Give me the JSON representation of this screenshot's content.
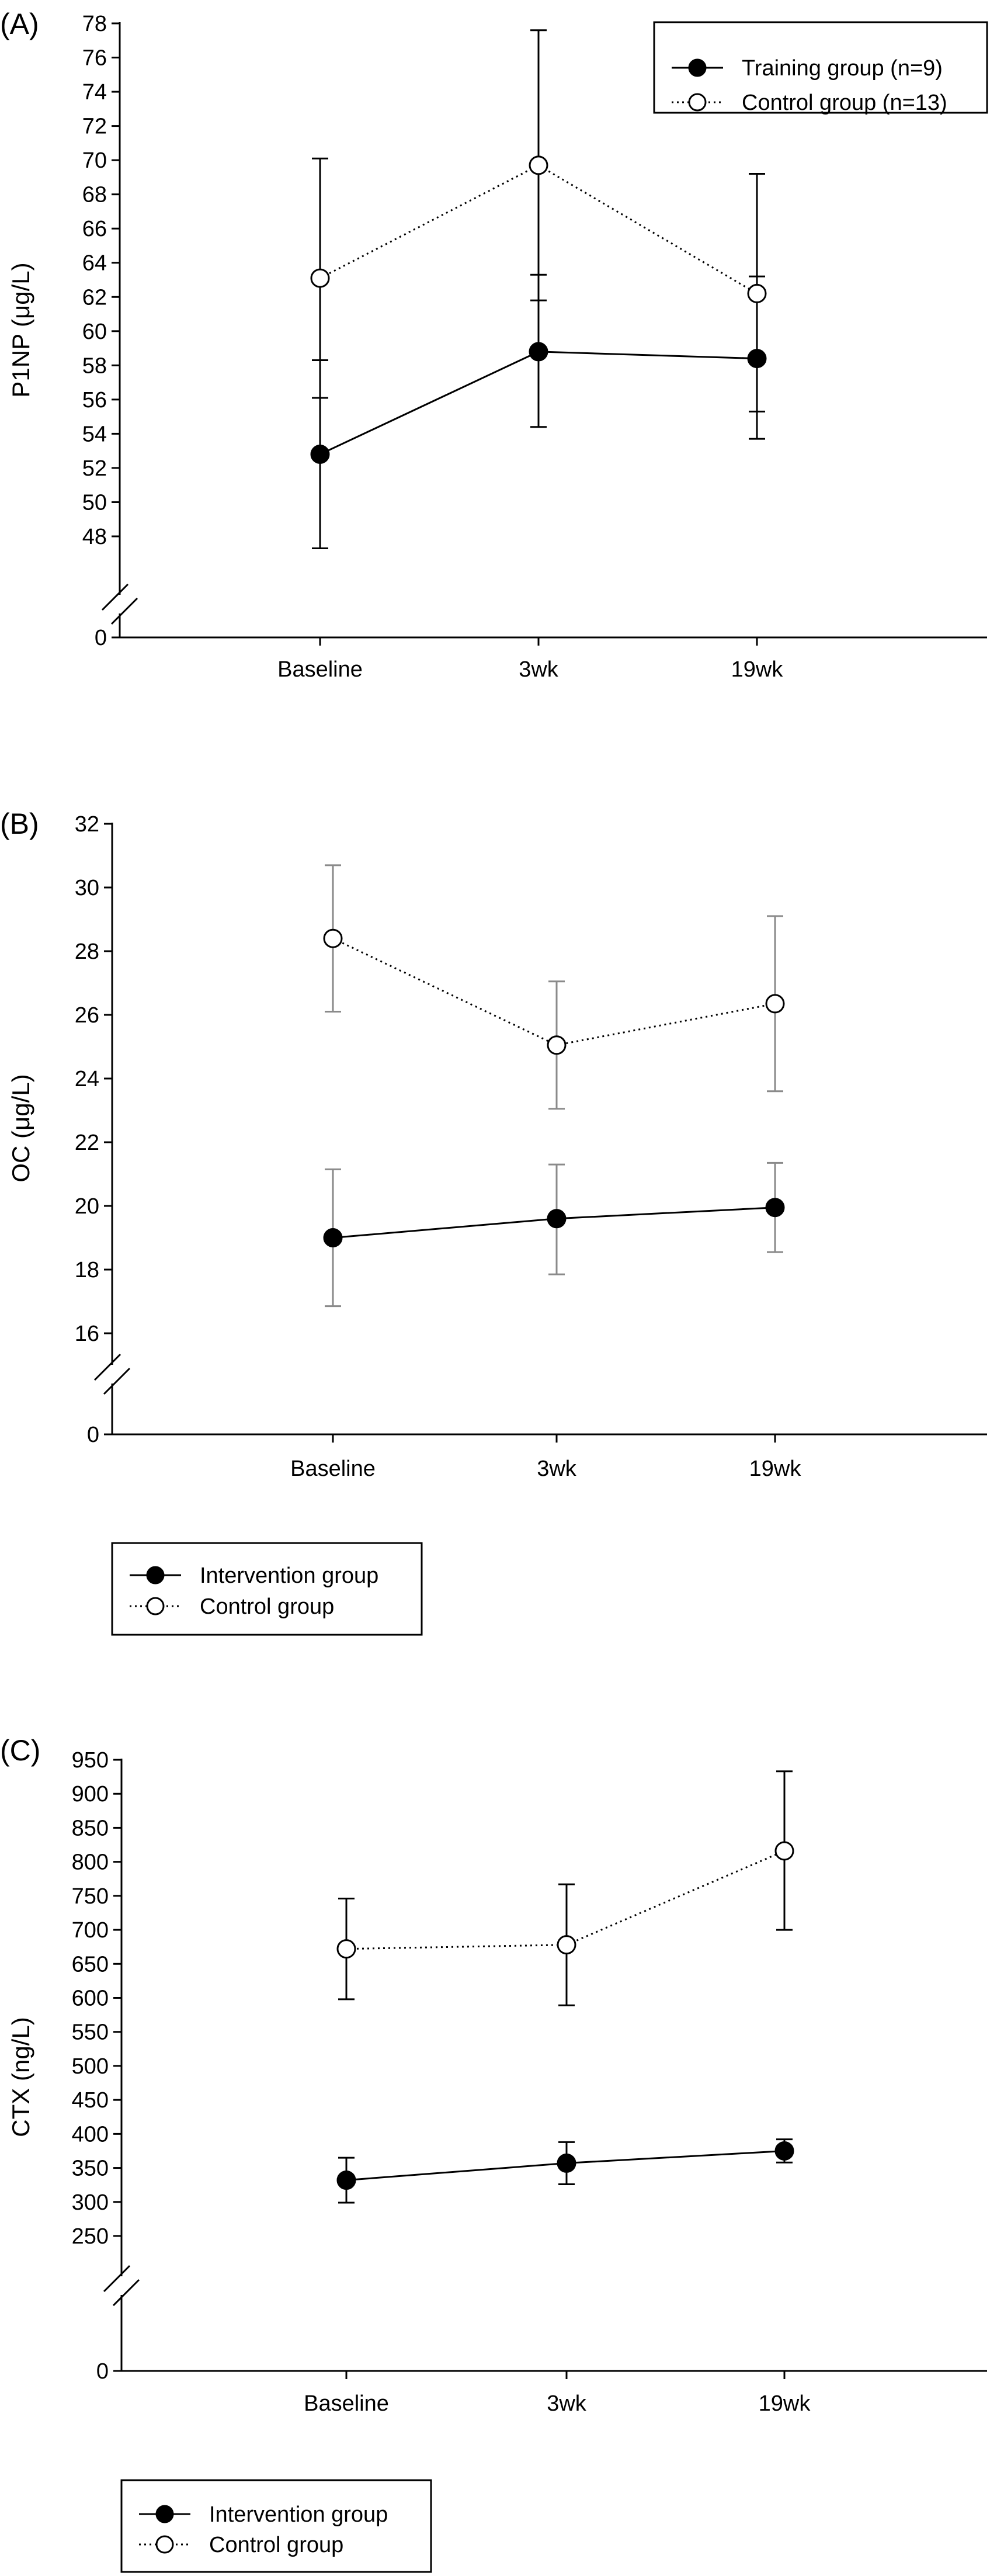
{
  "chart_data": [
    {
      "type": "line",
      "panel_label": "(A)",
      "ylabel": "P1NP (μg/L)",
      "xlabel": "",
      "categories": [
        "Baseline",
        "3wk",
        "19wk"
      ],
      "y_ticks": [
        0,
        48,
        50,
        52,
        54,
        56,
        58,
        60,
        62,
        64,
        66,
        68,
        70,
        72,
        74,
        76,
        78
      ],
      "axis_break": true,
      "ylim": [
        46,
        78
      ],
      "legend_position": "top-right",
      "series": [
        {
          "name": "Training group (n=9)",
          "values": [
            52.8,
            58.8,
            58.4
          ],
          "err_low": [
            47.3,
            54.4,
            53.7
          ],
          "err_high": [
            58.3,
            63.3,
            63.2
          ],
          "marker": "filled",
          "line": "solid",
          "color": "#000000",
          "errbar_color": "#000000"
        },
        {
          "name": "Control group (n=13)",
          "values": [
            63.1,
            69.7,
            62.2
          ],
          "err_low": [
            56.1,
            61.8,
            55.3
          ],
          "err_high": [
            70.1,
            77.6,
            69.2
          ],
          "marker": "open",
          "line": "dotted",
          "color": "#000000",
          "errbar_color": "#000000"
        }
      ]
    },
    {
      "type": "line",
      "panel_label": "(B)",
      "ylabel": "OC (μg/L)",
      "xlabel": "",
      "categories": [
        "Baseline",
        "3wk",
        "19wk"
      ],
      "y_ticks": [
        0,
        16,
        18,
        20,
        22,
        24,
        26,
        28,
        30,
        32
      ],
      "axis_break": true,
      "ylim": [
        15,
        32
      ],
      "legend_position": "bottom-left, below plot",
      "series": [
        {
          "name": "Intervention group",
          "values": [
            19.0,
            19.6,
            19.95
          ],
          "err_low": [
            16.85,
            17.85,
            18.55
          ],
          "err_high": [
            21.15,
            21.3,
            21.35
          ],
          "marker": "filled",
          "line": "solid",
          "color": "#000000",
          "errbar_color": "#8a8a8a"
        },
        {
          "name": "Control group",
          "values": [
            28.4,
            25.05,
            26.35
          ],
          "err_low": [
            26.1,
            23.05,
            23.6
          ],
          "err_high": [
            30.7,
            27.05,
            29.1
          ],
          "marker": "open",
          "line": "dotted",
          "color": "#000000",
          "errbar_color": "#8a8a8a"
        }
      ]
    },
    {
      "type": "line",
      "panel_label": "(C)",
      "ylabel": "CTX (ng/L)",
      "xlabel": "",
      "categories": [
        "Baseline",
        "3wk",
        "19wk"
      ],
      "y_ticks": [
        0,
        250,
        300,
        350,
        400,
        450,
        500,
        550,
        600,
        650,
        700,
        750,
        800,
        850,
        900,
        950
      ],
      "axis_break": true,
      "ylim": [
        225,
        950
      ],
      "legend_position": "bottom-left, below plot",
      "series": [
        {
          "name": "Intervention group",
          "values": [
            332,
            357,
            375
          ],
          "err_low": [
            299,
            326,
            358
          ],
          "err_high": [
            365,
            388,
            392
          ],
          "marker": "filled",
          "line": "solid",
          "color": "#000000",
          "errbar_color": "#000000"
        },
        {
          "name": "Control group",
          "values": [
            672,
            678,
            816
          ],
          "err_low": [
            598,
            589,
            700
          ],
          "err_high": [
            746,
            767,
            933
          ],
          "marker": "open",
          "line": "dotted",
          "color": "#000000",
          "errbar_color": "#000000"
        }
      ]
    }
  ]
}
